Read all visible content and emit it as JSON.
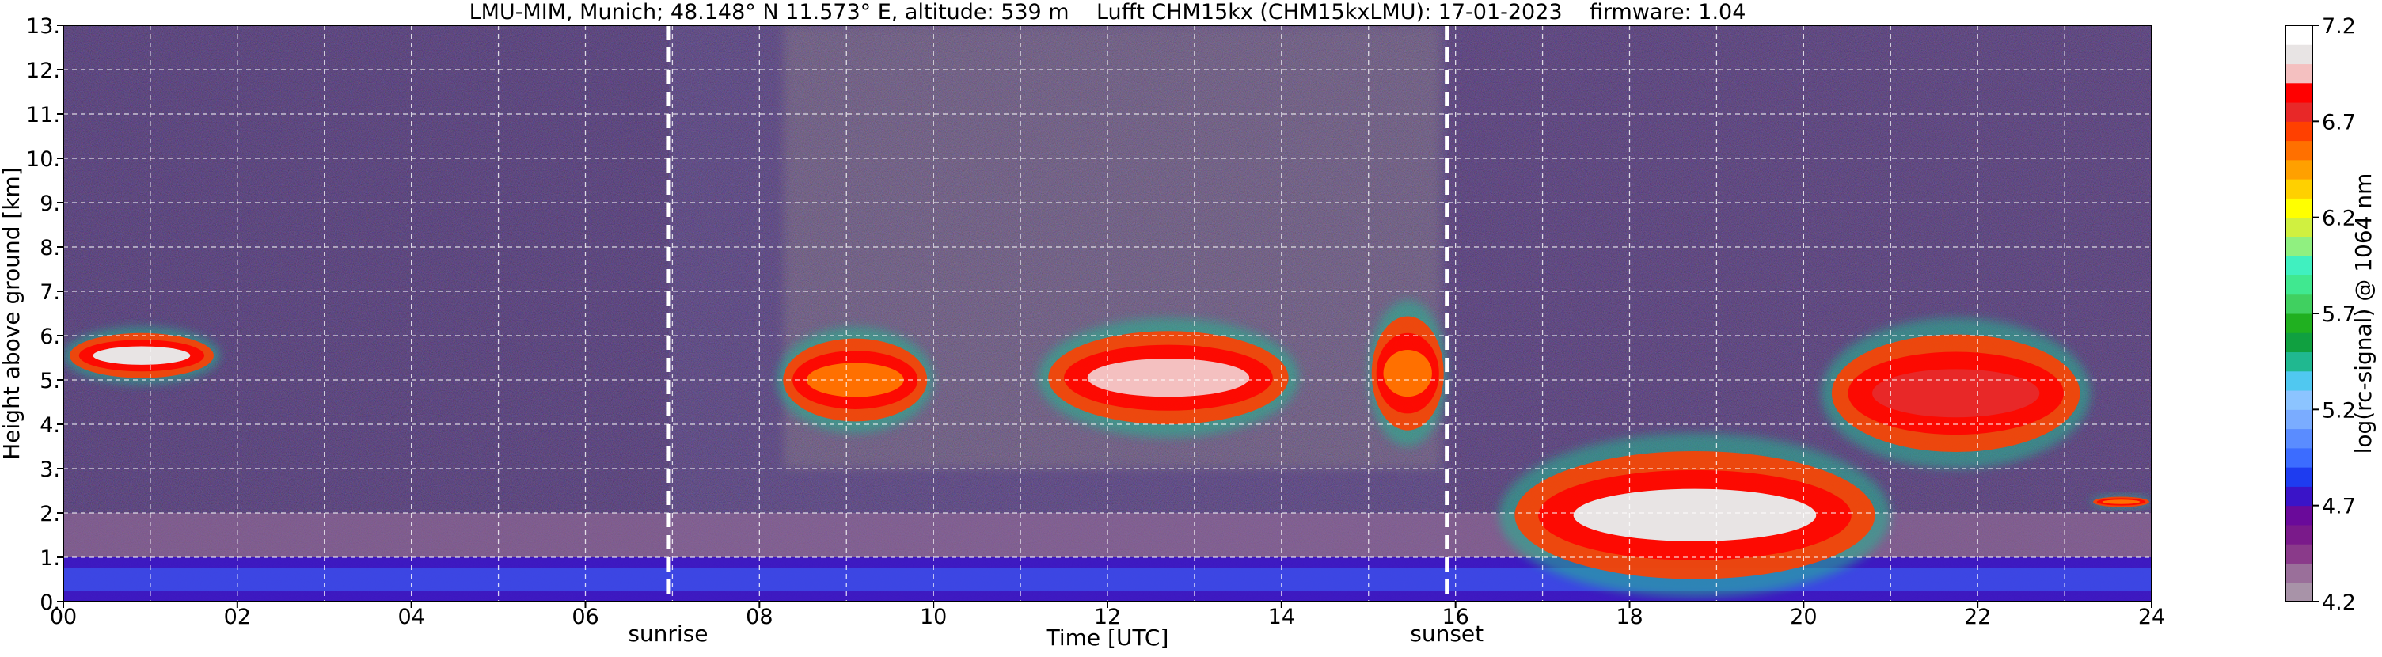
{
  "chart_data": {
    "type": "heatmap",
    "title": "LMU-MIM, Munich; 48.148° N 11.573° E, altitude: 539 m    Lufft CHM15kx (CHM15kxLMU): 17-01-2023    firmware: 1.04",
    "xlabel": "Time [UTC]",
    "ylabel": "Height above ground [km]",
    "xlim": [
      0,
      24
    ],
    "ylim": [
      0,
      13
    ],
    "x_ticks": [
      0,
      2,
      4,
      6,
      8,
      10,
      12,
      14,
      16,
      18,
      20,
      22,
      24
    ],
    "x_tick_labels": [
      "00",
      "02",
      "04",
      "06",
      "08",
      "10",
      "12",
      "14",
      "16",
      "18",
      "20",
      "22",
      "24"
    ],
    "y_ticks": [
      0,
      1,
      2,
      3,
      4,
      5,
      6,
      7,
      8,
      9,
      10,
      11,
      12,
      13
    ],
    "y_tick_labels": [
      "0.",
      "1.",
      "2.",
      "3.",
      "4.",
      "5.",
      "6.",
      "7.",
      "8.",
      "9.",
      "10.",
      "11.",
      "12.",
      "13."
    ],
    "grid": true,
    "markers": [
      {
        "name": "sunrise",
        "label": "sunrise",
        "x": 6.95
      },
      {
        "name": "sunset",
        "label": "sunset",
        "x": 15.9
      }
    ],
    "colorbar": {
      "label": "log(rc-signal) @ 1064 nm",
      "range": [
        4.2,
        7.2
      ],
      "tick_values": [
        4.2,
        4.7,
        5.2,
        5.7,
        6.2,
        6.7,
        7.2
      ],
      "tick_labels": [
        "4.2",
        "4.7",
        "5.2",
        "5.7",
        "6.2",
        "6.7",
        "7.2"
      ],
      "colors": [
        "#a893a8",
        "#9a6f9a",
        "#8a3a8a",
        "#7a1a8a",
        "#6a0a9a",
        "#3a14c8",
        "#1e3cf0",
        "#3c6cff",
        "#5a8cff",
        "#7aacff",
        "#8cc4ff",
        "#50c8f0",
        "#20b890",
        "#10a040",
        "#20b020",
        "#40d060",
        "#40e890",
        "#40f0c0",
        "#90f080",
        "#d0f040",
        "#ffff00",
        "#ffd000",
        "#ffa000",
        "#ff7000",
        "#ff4000",
        "#e82828",
        "#ff0000",
        "#f4c0c0",
        "#e8e4e4",
        "#ffffff"
      ]
    },
    "regions": [
      {
        "kind": "boundary-layer",
        "x_range": [
          0,
          24
        ],
        "y_range": [
          0,
          1.0
        ],
        "log_signal": 4.8
      },
      {
        "kind": "residual-layer",
        "x_range": [
          0,
          24
        ],
        "y_range": [
          1.0,
          2.0
        ],
        "log_signal": 4.3
      },
      {
        "kind": "cloud",
        "x_range": [
          0,
          1.8
        ],
        "y_range": [
          4.9,
          6.2
        ],
        "log_signal": 7.1
      },
      {
        "kind": "cloud",
        "x_range": [
          8.2,
          10.0
        ],
        "y_range": [
          3.8,
          6.2
        ],
        "log_signal": 6.5
      },
      {
        "kind": "cloud",
        "x_range": [
          11.2,
          14.2
        ],
        "y_range": [
          3.7,
          6.4
        ],
        "log_signal": 6.9
      },
      {
        "kind": "cloud",
        "x_range": [
          15.0,
          15.9
        ],
        "y_range": [
          3.5,
          6.8
        ],
        "log_signal": 6.5
      },
      {
        "kind": "cloud",
        "x_range": [
          16.5,
          21.0
        ],
        "y_range": [
          0.1,
          3.8
        ],
        "log_signal": 7.1
      },
      {
        "kind": "cloud",
        "x_range": [
          20.2,
          23.3
        ],
        "y_range": [
          3.0,
          6.4
        ],
        "log_signal": 6.8
      },
      {
        "kind": "cloud",
        "x_range": [
          23.3,
          24.0
        ],
        "y_range": [
          2.1,
          2.4
        ],
        "log_signal": 6.6
      }
    ]
  }
}
